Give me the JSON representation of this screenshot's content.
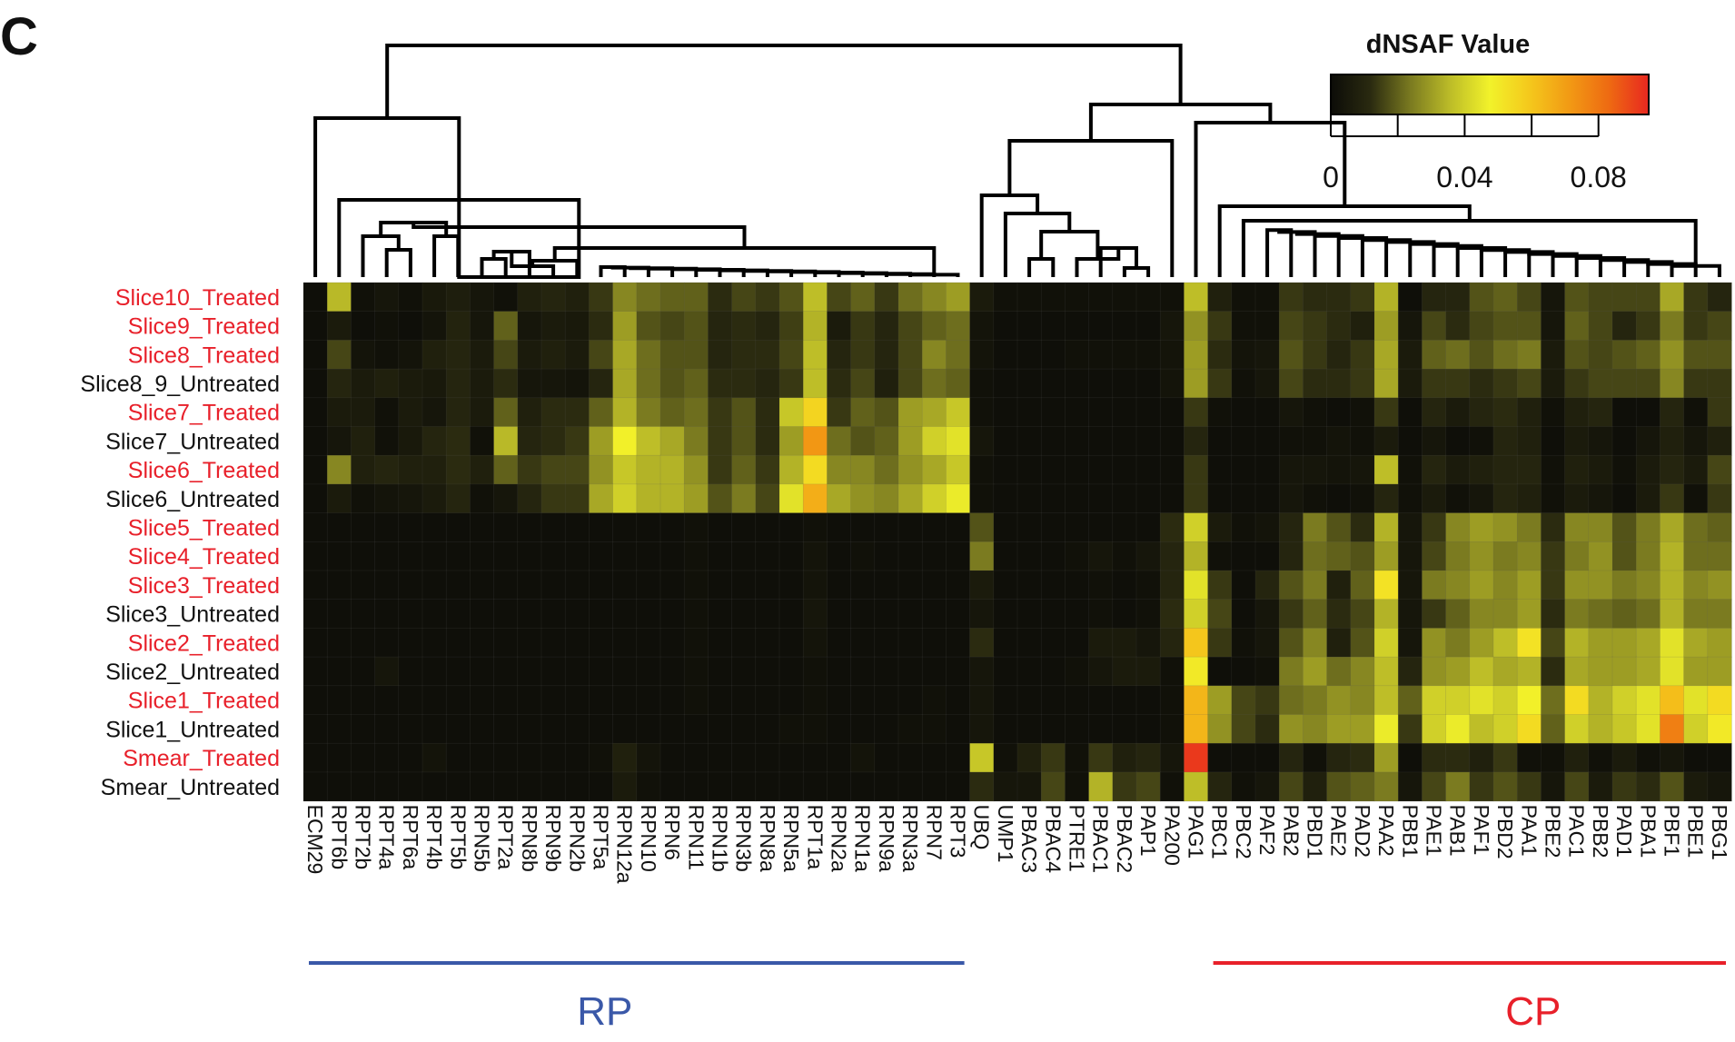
{
  "panel_label": "C",
  "legend": {
    "title": "dNSAF Value",
    "range": [
      0,
      0.095
    ],
    "ticks": [
      {
        "value": 0,
        "label": "0"
      },
      {
        "value": 0.04,
        "label": "0.04"
      },
      {
        "value": 0.08,
        "label": "0.08"
      }
    ],
    "colors": [
      "#0c0c08",
      "#2a2a10",
      "#7a7a20",
      "#bcbc28",
      "#f2f22a",
      "#f4c81c",
      "#f29a14",
      "#ee6a12",
      "#e82820"
    ]
  },
  "groups": [
    {
      "label": "RP",
      "color": "#3a58a8",
      "from": "ECM29",
      "to": "RPT3"
    },
    {
      "label": "CP",
      "color": "#e8202a",
      "from": "PBC1",
      "to": "PBG1"
    }
  ],
  "chart_data": {
    "type": "heatmap",
    "title": "",
    "xlabel": "",
    "ylabel": "",
    "zlim": [
      0,
      0.095
    ],
    "rows": [
      {
        "label": "Slice10_Treated",
        "treated": true
      },
      {
        "label": "Slice9_Treated",
        "treated": true
      },
      {
        "label": "Slice8_Treated",
        "treated": true
      },
      {
        "label": "Slice8_9_Untreated",
        "treated": false
      },
      {
        "label": "Slice7_Treated",
        "treated": true
      },
      {
        "label": "Slice7_Untreated",
        "treated": false
      },
      {
        "label": "Slice6_Treated",
        "treated": true
      },
      {
        "label": "Slice6_Untreated",
        "treated": false
      },
      {
        "label": "Slice5_Treated",
        "treated": true
      },
      {
        "label": "Slice4_Treated",
        "treated": true
      },
      {
        "label": "Slice3_Treated",
        "treated": true
      },
      {
        "label": "Slice3_Untreated",
        "treated": false
      },
      {
        "label": "Slice2_Treated",
        "treated": true
      },
      {
        "label": "Slice2_Untreated",
        "treated": false
      },
      {
        "label": "Slice1_Treated",
        "treated": true
      },
      {
        "label": "Slice1_Untreated",
        "treated": false
      },
      {
        "label": "Smear_Treated",
        "treated": true
      },
      {
        "label": "Smear_Untreated",
        "treated": false
      }
    ],
    "columns": [
      "ECM29",
      "RPT6b",
      "RPT2b",
      "RPT4a",
      "RPT6a",
      "RPT4b",
      "RPT5b",
      "RPN5b",
      "RPT2a",
      "RPN8b",
      "RPN9b",
      "RPN2b",
      "RPT5a",
      "RPN12a",
      "RPN10",
      "RPN6",
      "RPN11",
      "RPN1b",
      "RPN3b",
      "RPN8a",
      "RPN5a",
      "RPT1a",
      "RPN2a",
      "RPN1a",
      "RPN9a",
      "RPN3a",
      "RPN7",
      "RPT3",
      "UBQ",
      "UMP1",
      "PBAC3",
      "PBAC4",
      "PTRE1",
      "PBAC1",
      "PBAC2",
      "PAP1",
      "PA200",
      "PAG1",
      "PBC1",
      "PBC2",
      "PAF2",
      "PAB2",
      "PBD1",
      "PAE2",
      "PAD2",
      "PAA2",
      "PBB1",
      "PAE1",
      "PAB1",
      "PAF1",
      "PBD2",
      "PAA1",
      "PBE2",
      "PAC1",
      "PBB2",
      "PAD1",
      "PBA1",
      "PBF1",
      "PBE1",
      "PBG1"
    ],
    "values": [
      [
        0.001,
        0.035,
        0.002,
        0.004,
        0.002,
        0.005,
        0.007,
        0.004,
        0.002,
        0.008,
        0.01,
        0.008,
        0.014,
        0.026,
        0.022,
        0.02,
        0.02,
        0.012,
        0.016,
        0.014,
        0.018,
        0.036,
        0.016,
        0.02,
        0.014,
        0.022,
        0.026,
        0.03,
        0.006,
        0.002,
        0.002,
        0.002,
        0.002,
        0.002,
        0.002,
        0.002,
        0.002,
        0.036,
        0.008,
        0.002,
        0.002,
        0.014,
        0.012,
        0.012,
        0.014,
        0.034,
        0.001,
        0.01,
        0.01,
        0.018,
        0.02,
        0.016,
        0.004,
        0.018,
        0.016,
        0.016,
        0.016,
        0.032,
        0.014,
        0.01
      ],
      [
        0.001,
        0.006,
        0.001,
        0.002,
        0.001,
        0.003,
        0.009,
        0.004,
        0.02,
        0.004,
        0.006,
        0.005,
        0.012,
        0.03,
        0.018,
        0.016,
        0.018,
        0.01,
        0.012,
        0.01,
        0.015,
        0.034,
        0.006,
        0.014,
        0.01,
        0.016,
        0.02,
        0.022,
        0.003,
        0.001,
        0.001,
        0.001,
        0.001,
        0.001,
        0.001,
        0.001,
        0.004,
        0.028,
        0.014,
        0.002,
        0.002,
        0.016,
        0.014,
        0.012,
        0.008,
        0.03,
        0.004,
        0.016,
        0.012,
        0.016,
        0.018,
        0.018,
        0.004,
        0.02,
        0.016,
        0.01,
        0.014,
        0.024,
        0.014,
        0.016
      ],
      [
        0.001,
        0.016,
        0.003,
        0.002,
        0.003,
        0.008,
        0.01,
        0.006,
        0.016,
        0.006,
        0.008,
        0.006,
        0.016,
        0.032,
        0.022,
        0.018,
        0.018,
        0.01,
        0.012,
        0.012,
        0.016,
        0.036,
        0.01,
        0.014,
        0.01,
        0.016,
        0.026,
        0.022,
        0.003,
        0.001,
        0.001,
        0.001,
        0.002,
        0.002,
        0.002,
        0.002,
        0.003,
        0.03,
        0.012,
        0.003,
        0.004,
        0.018,
        0.014,
        0.01,
        0.014,
        0.032,
        0.006,
        0.02,
        0.022,
        0.018,
        0.022,
        0.024,
        0.006,
        0.018,
        0.016,
        0.018,
        0.02,
        0.028,
        0.018,
        0.018
      ],
      [
        0.001,
        0.01,
        0.006,
        0.008,
        0.006,
        0.005,
        0.01,
        0.006,
        0.012,
        0.004,
        0.004,
        0.003,
        0.01,
        0.032,
        0.022,
        0.018,
        0.02,
        0.012,
        0.012,
        0.01,
        0.014,
        0.036,
        0.012,
        0.016,
        0.008,
        0.016,
        0.022,
        0.02,
        0.002,
        0.001,
        0.001,
        0.001,
        0.001,
        0.001,
        0.001,
        0.001,
        0.003,
        0.03,
        0.014,
        0.002,
        0.004,
        0.016,
        0.012,
        0.012,
        0.014,
        0.032,
        0.006,
        0.014,
        0.014,
        0.012,
        0.014,
        0.016,
        0.006,
        0.014,
        0.016,
        0.016,
        0.016,
        0.026,
        0.014,
        0.014
      ],
      [
        0.001,
        0.006,
        0.006,
        0.002,
        0.006,
        0.004,
        0.01,
        0.006,
        0.02,
        0.008,
        0.012,
        0.012,
        0.02,
        0.034,
        0.024,
        0.02,
        0.022,
        0.014,
        0.018,
        0.012,
        0.038,
        0.056,
        0.014,
        0.02,
        0.018,
        0.03,
        0.032,
        0.038,
        0.002,
        0.001,
        0.001,
        0.001,
        0.001,
        0.001,
        0.001,
        0.001,
        0.001,
        0.014,
        0.002,
        0.001,
        0.001,
        0.004,
        0.002,
        0.001,
        0.002,
        0.014,
        0.001,
        0.01,
        0.006,
        0.01,
        0.012,
        0.008,
        0.002,
        0.008,
        0.01,
        0.001,
        0.001,
        0.01,
        0.002,
        0.014
      ],
      [
        0.001,
        0.004,
        0.008,
        0.002,
        0.005,
        0.01,
        0.012,
        0.002,
        0.035,
        0.01,
        0.012,
        0.014,
        0.03,
        0.048,
        0.036,
        0.032,
        0.024,
        0.014,
        0.018,
        0.012,
        0.03,
        0.072,
        0.022,
        0.018,
        0.02,
        0.03,
        0.04,
        0.044,
        0.004,
        0.001,
        0.001,
        0.001,
        0.001,
        0.001,
        0.001,
        0.001,
        0.001,
        0.01,
        0.001,
        0.001,
        0.001,
        0.002,
        0.002,
        0.003,
        0.002,
        0.006,
        0.001,
        0.004,
        0.001,
        0.002,
        0.01,
        0.008,
        0.001,
        0.006,
        0.004,
        0.001,
        0.004,
        0.008,
        0.004,
        0.008
      ],
      [
        0.001,
        0.026,
        0.008,
        0.01,
        0.008,
        0.008,
        0.012,
        0.008,
        0.02,
        0.014,
        0.016,
        0.016,
        0.028,
        0.038,
        0.034,
        0.034,
        0.028,
        0.014,
        0.02,
        0.014,
        0.034,
        0.054,
        0.026,
        0.026,
        0.022,
        0.028,
        0.032,
        0.038,
        0.002,
        0.001,
        0.001,
        0.001,
        0.001,
        0.001,
        0.001,
        0.001,
        0.001,
        0.014,
        0.001,
        0.001,
        0.001,
        0.004,
        0.004,
        0.003,
        0.004,
        0.036,
        0.002,
        0.01,
        0.006,
        0.008,
        0.01,
        0.01,
        0.002,
        0.008,
        0.006,
        0.002,
        0.006,
        0.01,
        0.006,
        0.016
      ],
      [
        0.001,
        0.006,
        0.002,
        0.003,
        0.004,
        0.006,
        0.01,
        0.002,
        0.004,
        0.01,
        0.014,
        0.014,
        0.032,
        0.04,
        0.034,
        0.034,
        0.03,
        0.018,
        0.024,
        0.016,
        0.044,
        0.066,
        0.032,
        0.028,
        0.026,
        0.032,
        0.04,
        0.046,
        0.002,
        0.001,
        0.001,
        0.001,
        0.001,
        0.001,
        0.001,
        0.001,
        0.001,
        0.014,
        0.001,
        0.001,
        0.001,
        0.004,
        0.002,
        0.001,
        0.002,
        0.01,
        0.002,
        0.006,
        0.002,
        0.004,
        0.01,
        0.008,
        0.002,
        0.006,
        0.004,
        0.001,
        0.006,
        0.014,
        0.002,
        0.014
      ],
      [
        0.001,
        0.001,
        0.001,
        0.001,
        0.001,
        0.001,
        0.001,
        0.001,
        0.001,
        0.001,
        0.001,
        0.001,
        0.001,
        0.001,
        0.001,
        0.001,
        0.002,
        0.001,
        0.001,
        0.001,
        0.001,
        0.002,
        0.001,
        0.001,
        0.001,
        0.001,
        0.001,
        0.001,
        0.018,
        0.001,
        0.001,
        0.001,
        0.001,
        0.001,
        0.001,
        0.001,
        0.012,
        0.04,
        0.006,
        0.002,
        0.003,
        0.01,
        0.024,
        0.018,
        0.012,
        0.034,
        0.004,
        0.014,
        0.026,
        0.03,
        0.028,
        0.024,
        0.012,
        0.026,
        0.026,
        0.018,
        0.024,
        0.032,
        0.022,
        0.02
      ],
      [
        0.001,
        0.001,
        0.001,
        0.001,
        0.001,
        0.001,
        0.001,
        0.001,
        0.001,
        0.001,
        0.001,
        0.001,
        0.001,
        0.001,
        0.001,
        0.001,
        0.002,
        0.001,
        0.001,
        0.001,
        0.001,
        0.003,
        0.001,
        0.002,
        0.001,
        0.001,
        0.001,
        0.001,
        0.024,
        0.001,
        0.001,
        0.001,
        0.002,
        0.004,
        0.002,
        0.004,
        0.01,
        0.034,
        0.002,
        0.001,
        0.001,
        0.01,
        0.022,
        0.02,
        0.018,
        0.03,
        0.004,
        0.016,
        0.024,
        0.028,
        0.024,
        0.026,
        0.014,
        0.024,
        0.028,
        0.018,
        0.024,
        0.034,
        0.022,
        0.022
      ],
      [
        0.001,
        0.001,
        0.001,
        0.001,
        0.001,
        0.001,
        0.001,
        0.001,
        0.001,
        0.001,
        0.001,
        0.001,
        0.001,
        0.001,
        0.001,
        0.001,
        0.002,
        0.001,
        0.001,
        0.001,
        0.001,
        0.003,
        0.001,
        0.001,
        0.001,
        0.001,
        0.001,
        0.001,
        0.006,
        0.001,
        0.001,
        0.001,
        0.001,
        0.002,
        0.001,
        0.002,
        0.01,
        0.044,
        0.014,
        0.001,
        0.01,
        0.018,
        0.024,
        0.008,
        0.02,
        0.052,
        0.004,
        0.024,
        0.026,
        0.03,
        0.026,
        0.03,
        0.014,
        0.028,
        0.028,
        0.024,
        0.026,
        0.034,
        0.026,
        0.028
      ],
      [
        0.001,
        0.001,
        0.001,
        0.001,
        0.001,
        0.001,
        0.001,
        0.001,
        0.001,
        0.001,
        0.001,
        0.001,
        0.001,
        0.001,
        0.001,
        0.001,
        0.002,
        0.001,
        0.001,
        0.001,
        0.001,
        0.004,
        0.001,
        0.001,
        0.001,
        0.001,
        0.001,
        0.001,
        0.004,
        0.001,
        0.001,
        0.001,
        0.001,
        0.002,
        0.001,
        0.002,
        0.012,
        0.04,
        0.016,
        0.001,
        0.004,
        0.014,
        0.02,
        0.012,
        0.016,
        0.034,
        0.004,
        0.014,
        0.02,
        0.026,
        0.026,
        0.03,
        0.012,
        0.024,
        0.022,
        0.02,
        0.022,
        0.034,
        0.024,
        0.024
      ],
      [
        0.001,
        0.001,
        0.001,
        0.001,
        0.001,
        0.001,
        0.001,
        0.001,
        0.001,
        0.001,
        0.001,
        0.001,
        0.001,
        0.001,
        0.001,
        0.001,
        0.002,
        0.001,
        0.001,
        0.001,
        0.001,
        0.003,
        0.001,
        0.001,
        0.001,
        0.001,
        0.001,
        0.001,
        0.012,
        0.001,
        0.001,
        0.001,
        0.001,
        0.006,
        0.006,
        0.004,
        0.01,
        0.06,
        0.014,
        0.002,
        0.004,
        0.018,
        0.026,
        0.008,
        0.018,
        0.04,
        0.004,
        0.028,
        0.024,
        0.03,
        0.036,
        0.052,
        0.016,
        0.034,
        0.03,
        0.03,
        0.032,
        0.044,
        0.032,
        0.03
      ],
      [
        0.001,
        0.001,
        0.001,
        0.004,
        0.001,
        0.001,
        0.001,
        0.001,
        0.001,
        0.001,
        0.001,
        0.001,
        0.001,
        0.001,
        0.001,
        0.001,
        0.002,
        0.001,
        0.001,
        0.001,
        0.001,
        0.002,
        0.001,
        0.001,
        0.001,
        0.001,
        0.001,
        0.001,
        0.004,
        0.001,
        0.001,
        0.001,
        0.002,
        0.004,
        0.006,
        0.006,
        0.002,
        0.05,
        0.001,
        0.001,
        0.002,
        0.024,
        0.03,
        0.022,
        0.026,
        0.036,
        0.01,
        0.028,
        0.03,
        0.036,
        0.032,
        0.034,
        0.012,
        0.032,
        0.03,
        0.03,
        0.032,
        0.044,
        0.03,
        0.03
      ],
      [
        0.001,
        0.001,
        0.001,
        0.001,
        0.001,
        0.001,
        0.001,
        0.001,
        0.001,
        0.001,
        0.001,
        0.001,
        0.001,
        0.001,
        0.001,
        0.001,
        0.002,
        0.001,
        0.001,
        0.001,
        0.001,
        0.002,
        0.001,
        0.001,
        0.001,
        0.001,
        0.002,
        0.001,
        0.004,
        0.001,
        0.001,
        0.001,
        0.001,
        0.001,
        0.001,
        0.001,
        0.002,
        0.064,
        0.03,
        0.016,
        0.014,
        0.022,
        0.024,
        0.028,
        0.026,
        0.036,
        0.02,
        0.04,
        0.04,
        0.044,
        0.04,
        0.048,
        0.022,
        0.054,
        0.034,
        0.04,
        0.044,
        0.062,
        0.044,
        0.054
      ],
      [
        0.001,
        0.001,
        0.001,
        0.001,
        0.001,
        0.001,
        0.001,
        0.001,
        0.001,
        0.001,
        0.001,
        0.001,
        0.001,
        0.001,
        0.001,
        0.001,
        0.001,
        0.001,
        0.001,
        0.001,
        0.002,
        0.002,
        0.001,
        0.001,
        0.001,
        0.002,
        0.002,
        0.001,
        0.004,
        0.001,
        0.001,
        0.001,
        0.001,
        0.001,
        0.001,
        0.001,
        0.002,
        0.064,
        0.028,
        0.016,
        0.012,
        0.028,
        0.026,
        0.03,
        0.03,
        0.046,
        0.014,
        0.04,
        0.046,
        0.036,
        0.04,
        0.054,
        0.02,
        0.04,
        0.034,
        0.038,
        0.044,
        0.078,
        0.04,
        0.05
      ],
      [
        0.001,
        0.001,
        0.001,
        0.001,
        0.001,
        0.003,
        0.001,
        0.001,
        0.001,
        0.001,
        0.001,
        0.001,
        0.002,
        0.008,
        0.003,
        0.001,
        0.001,
        0.001,
        0.001,
        0.001,
        0.001,
        0.001,
        0.001,
        0.003,
        0.001,
        0.001,
        0.001,
        0.001,
        0.038,
        0.002,
        0.008,
        0.014,
        0.002,
        0.014,
        0.008,
        0.01,
        0.004,
        0.092,
        0.001,
        0.001,
        0.001,
        0.01,
        0.002,
        0.01,
        0.012,
        0.03,
        0.001,
        0.012,
        0.012,
        0.008,
        0.014,
        0.002,
        0.002,
        0.008,
        0.002,
        0.006,
        0.002,
        0.004,
        0.001,
        0.001
      ],
      [
        0.001,
        0.001,
        0.001,
        0.001,
        0.001,
        0.001,
        0.001,
        0.001,
        0.001,
        0.001,
        0.001,
        0.001,
        0.001,
        0.006,
        0.002,
        0.001,
        0.001,
        0.001,
        0.001,
        0.001,
        0.001,
        0.001,
        0.001,
        0.001,
        0.001,
        0.001,
        0.001,
        0.001,
        0.012,
        0.004,
        0.004,
        0.016,
        0.002,
        0.034,
        0.014,
        0.016,
        0.002,
        0.036,
        0.01,
        0.002,
        0.004,
        0.016,
        0.008,
        0.018,
        0.02,
        0.024,
        0.004,
        0.016,
        0.024,
        0.014,
        0.018,
        0.014,
        0.004,
        0.016,
        0.006,
        0.014,
        0.012,
        0.018,
        0.006,
        0.004
      ]
    ]
  }
}
